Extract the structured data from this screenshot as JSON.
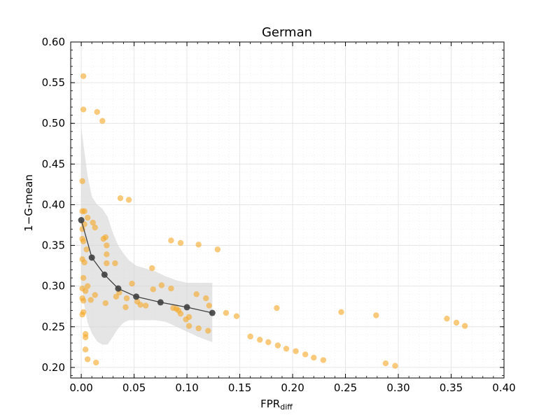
{
  "chart_data": {
    "type": "scatter",
    "title": "German",
    "xlabel": "FPR",
    "xlabel_subscript": "diff",
    "ylabel": "1−G-mean",
    "xlim": [
      -0.01,
      0.4
    ],
    "ylim": [
      0.187,
      0.6
    ],
    "x_ticks": [
      0.0,
      0.05,
      0.1,
      0.15,
      0.2,
      0.25,
      0.3,
      0.35,
      0.4
    ],
    "x_tick_labels": [
      "0.00",
      "0.05",
      "0.10",
      "0.15",
      "0.20",
      "0.25",
      "0.30",
      "0.35",
      "0.40"
    ],
    "y_ticks": [
      0.2,
      0.25,
      0.3,
      0.35,
      0.4,
      0.45,
      0.5,
      0.55,
      0.6
    ],
    "y_tick_labels": [
      "0.20",
      "0.25",
      "0.30",
      "0.35",
      "0.40",
      "0.45",
      "0.50",
      "0.55",
      "0.60"
    ],
    "grid": true,
    "colors": {
      "scatter": "#f5a623",
      "curve": "#404040",
      "band": "#d3d3d3"
    },
    "scatter": {
      "points": [
        [
          0.002,
          0.558
        ],
        [
          0.002,
          0.517
        ],
        [
          0.015,
          0.514
        ],
        [
          0.02,
          0.503
        ],
        [
          0.001,
          0.429
        ],
        [
          0.037,
          0.408
        ],
        [
          0.045,
          0.406
        ],
        [
          0.001,
          0.392
        ],
        [
          0.003,
          0.392
        ],
        [
          0.006,
          0.384
        ],
        [
          0.011,
          0.378
        ],
        [
          0.003,
          0.376
        ],
        [
          0.001,
          0.37
        ],
        [
          0.013,
          0.372
        ],
        [
          0.023,
          0.36
        ],
        [
          0.021,
          0.358
        ],
        [
          0.001,
          0.358
        ],
        [
          0.002,
          0.355
        ],
        [
          0.024,
          0.35
        ],
        [
          0.005,
          0.345
        ],
        [
          0.024,
          0.339
        ],
        [
          0.001,
          0.333
        ],
        [
          0.003,
          0.329
        ],
        [
          0.024,
          0.328
        ],
        [
          0.032,
          0.328
        ],
        [
          0.085,
          0.356
        ],
        [
          0.094,
          0.353
        ],
        [
          0.111,
          0.351
        ],
        [
          0.129,
          0.345
        ],
        [
          0.067,
          0.322
        ],
        [
          0.002,
          0.31
        ],
        [
          0.048,
          0.303
        ],
        [
          0.076,
          0.301
        ],
        [
          0.085,
          0.297
        ],
        [
          0.068,
          0.296
        ],
        [
          0.006,
          0.3
        ],
        [
          0.001,
          0.297
        ],
        [
          0.004,
          0.294
        ],
        [
          0.013,
          0.289
        ],
        [
          0.033,
          0.287
        ],
        [
          0.043,
          0.285
        ],
        [
          0.036,
          0.292
        ],
        [
          0.109,
          0.29
        ],
        [
          0.118,
          0.285
        ],
        [
          0.001,
          0.285
        ],
        [
          0.002,
          0.282
        ],
        [
          0.009,
          0.283
        ],
        [
          0.023,
          0.279
        ],
        [
          0.053,
          0.281
        ],
        [
          0.056,
          0.277
        ],
        [
          0.061,
          0.276
        ],
        [
          0.042,
          0.274
        ],
        [
          0.121,
          0.276
        ],
        [
          0.087,
          0.273
        ],
        [
          0.09,
          0.272
        ],
        [
          0.092,
          0.27
        ],
        [
          0.094,
          0.266
        ],
        [
          0.102,
          0.262
        ],
        [
          0.099,
          0.259
        ],
        [
          0.002,
          0.268
        ],
        [
          0.001,
          0.265
        ],
        [
          0.137,
          0.267
        ],
        [
          0.147,
          0.263
        ],
        [
          0.185,
          0.273
        ],
        [
          0.246,
          0.268
        ],
        [
          0.279,
          0.264
        ],
        [
          0.102,
          0.251
        ],
        [
          0.111,
          0.248
        ],
        [
          0.12,
          0.245
        ],
        [
          0.004,
          0.241
        ],
        [
          0.004,
          0.237
        ],
        [
          0.16,
          0.238
        ],
        [
          0.169,
          0.234
        ],
        [
          0.177,
          0.231
        ],
        [
          0.186,
          0.227
        ],
        [
          0.194,
          0.223
        ],
        [
          0.203,
          0.22
        ],
        [
          0.212,
          0.216
        ],
        [
          0.22,
          0.212
        ],
        [
          0.229,
          0.209
        ],
        [
          0.004,
          0.222
        ],
        [
          0.006,
          0.21
        ],
        [
          0.014,
          0.206
        ],
        [
          0.288,
          0.205
        ],
        [
          0.297,
          0.202
        ],
        [
          0.346,
          0.26
        ],
        [
          0.355,
          0.255
        ],
        [
          0.363,
          0.251
        ]
      ]
    },
    "curve": {
      "x": [
        0.0,
        0.01,
        0.022,
        0.035,
        0.052,
        0.075,
        0.1,
        0.124
      ],
      "y": [
        0.381,
        0.335,
        0.314,
        0.297,
        0.287,
        0.28,
        0.274,
        0.267
      ]
    },
    "band": {
      "x": [
        0.0,
        0.003,
        0.006,
        0.01,
        0.015,
        0.02,
        0.025,
        0.03,
        0.035,
        0.04,
        0.045,
        0.052,
        0.06,
        0.07,
        0.08,
        0.09,
        0.1,
        0.11,
        0.124
      ],
      "upper": [
        0.495,
        0.465,
        0.435,
        0.41,
        0.4,
        0.395,
        0.385,
        0.365,
        0.35,
        0.34,
        0.332,
        0.325,
        0.322,
        0.318,
        0.312,
        0.307,
        0.304,
        0.304,
        0.304
      ],
      "lower": [
        0.305,
        0.275,
        0.255,
        0.242,
        0.232,
        0.228,
        0.228,
        0.238,
        0.248,
        0.255,
        0.258,
        0.258,
        0.258,
        0.258,
        0.256,
        0.25,
        0.244,
        0.238,
        0.231
      ]
    }
  }
}
